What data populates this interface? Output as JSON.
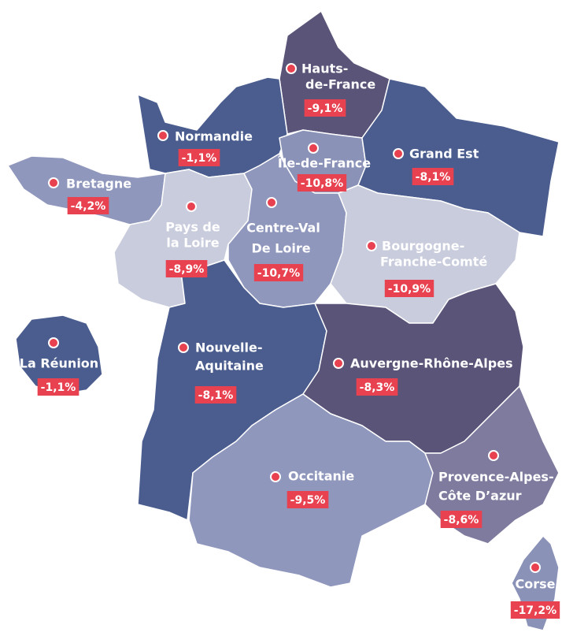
{
  "regions": [
    {
      "name": [
        "Hauts-",
        "de-France"
      ],
      "label": "-9,1%"
    },
    {
      "name": [
        "Normandie"
      ],
      "label": "-1,1%"
    },
    {
      "name": [
        "Île-de-France"
      ],
      "label": "-10,8%"
    },
    {
      "name": [
        "Grand Est"
      ],
      "label": "-8,1%"
    },
    {
      "name": [
        "Bretagne"
      ],
      "label": "-4,2%"
    },
    {
      "name": [
        "Pays de",
        "la Loire"
      ],
      "label": "-8,9%"
    },
    {
      "name": [
        "Centre-Val",
        "De Loire"
      ],
      "label": "-10,7%"
    },
    {
      "name": [
        "Bourgogne-",
        "Franche-Comté"
      ],
      "label": "-10,9%"
    },
    {
      "name": [
        "Nouvelle-",
        "Aquitaine"
      ],
      "label": "-8,1%"
    },
    {
      "name": [
        "Auvergne-Rhône-Alpes"
      ],
      "label": "-8,3%"
    },
    {
      "name": [
        "Occitanie"
      ],
      "label": "-9,5%"
    },
    {
      "name": [
        "Provence-Alpes-",
        "Côte D’azur"
      ],
      "label": "-8,6%"
    },
    {
      "name": [
        "Corse"
      ],
      "label": "-17,2%"
    },
    {
      "name": [
        "La Réunion"
      ],
      "label": "-1,1%"
    }
  ]
}
